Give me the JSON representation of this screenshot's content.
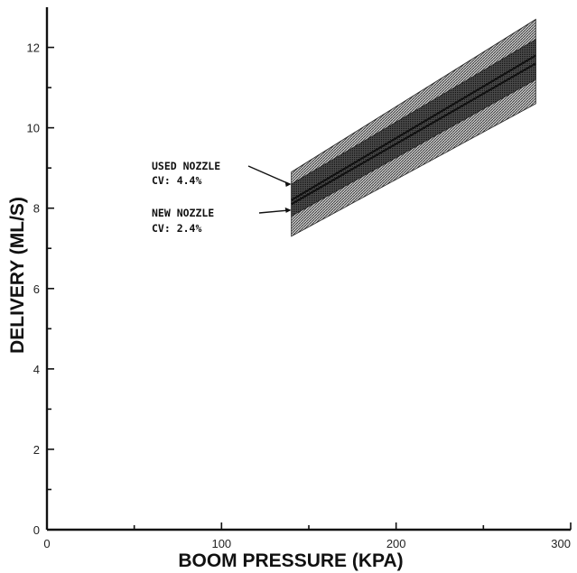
{
  "chart_data": {
    "type": "line",
    "title": "",
    "xlabel": "BOOM PRESSURE (KPA)",
    "ylabel": "DELIVERY (ML/S)",
    "xlim": [
      0,
      300
    ],
    "ylim": [
      0,
      13
    ],
    "xticks": [
      0,
      100,
      200,
      300
    ],
    "yticks": [
      0,
      2,
      4,
      6,
      8,
      10,
      12
    ],
    "grid": false,
    "series": [
      {
        "name": "USED NOZZLE",
        "x": [
          140,
          280
        ],
        "y": [
          8.1,
          11.6
        ],
        "band_lower": [
          7.3,
          10.6
        ],
        "band_upper": [
          8.9,
          12.7
        ]
      },
      {
        "name": "NEW NOZZLE",
        "x": [
          140,
          280
        ],
        "y": [
          8.2,
          11.8
        ],
        "band_lower": [
          7.8,
          11.2
        ],
        "band_upper": [
          8.6,
          12.2
        ]
      }
    ],
    "annotations": [
      {
        "line1": "USED NOZZLE",
        "line2": "CV: 4.4%",
        "target_x": 140,
        "target_y": 8.6
      },
      {
        "line1": "NEW NOZZLE",
        "line2": "CV: 2.4%",
        "target_x": 140,
        "target_y": 7.95
      }
    ]
  },
  "colors": {
    "axis": "#111111",
    "band_fill": "#777777",
    "line": "#111111"
  }
}
